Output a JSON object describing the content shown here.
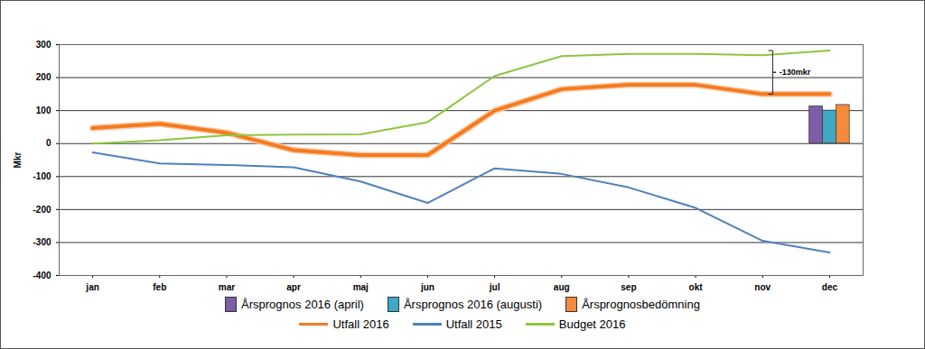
{
  "chart_data": {
    "type": "line",
    "categories": [
      "jan",
      "feb",
      "mar",
      "apr",
      "maj",
      "jun",
      "jul",
      "aug",
      "sep",
      "okt",
      "nov",
      "dec"
    ],
    "ylabel": "Mkr",
    "ylim": [
      -400,
      300
    ],
    "yticks": [
      -400,
      -300,
      -200,
      -100,
      0,
      100,
      200,
      300
    ],
    "grid": true,
    "legend": "bottom",
    "annotation": "-130mkr",
    "series": [
      {
        "name": "Årsprognos 2016 (april)",
        "type": "bar",
        "color": "#7b5ea7",
        "values": [
          null,
          null,
          null,
          null,
          null,
          null,
          null,
          null,
          null,
          null,
          null,
          113
        ]
      },
      {
        "name": "Årsprognos 2016 (augusti)",
        "type": "bar",
        "color": "#3fa8c4",
        "values": [
          null,
          null,
          null,
          null,
          null,
          null,
          null,
          null,
          null,
          null,
          null,
          100
        ]
      },
      {
        "name": "Årsprognosbedömning",
        "type": "bar",
        "color": "#f48a3c",
        "values": [
          null,
          null,
          null,
          null,
          null,
          null,
          null,
          null,
          null,
          null,
          null,
          117
        ]
      },
      {
        "name": "Utfall 2016",
        "type": "line",
        "color": "#f47b20",
        "values": [
          47,
          60,
          33,
          -20,
          -35,
          -35,
          100,
          165,
          178,
          178,
          150,
          150
        ]
      },
      {
        "name": "Utfall 2015",
        "type": "line",
        "color": "#4f81bd",
        "values": [
          -27,
          -60,
          -65,
          -72,
          -115,
          -180,
          -75,
          -92,
          -133,
          -195,
          -295,
          -330
        ]
      },
      {
        "name": "Budget 2016",
        "type": "line",
        "color": "#8dc63f",
        "values": [
          0,
          10,
          25,
          27,
          28,
          65,
          205,
          265,
          272,
          272,
          268,
          282
        ]
      }
    ]
  }
}
